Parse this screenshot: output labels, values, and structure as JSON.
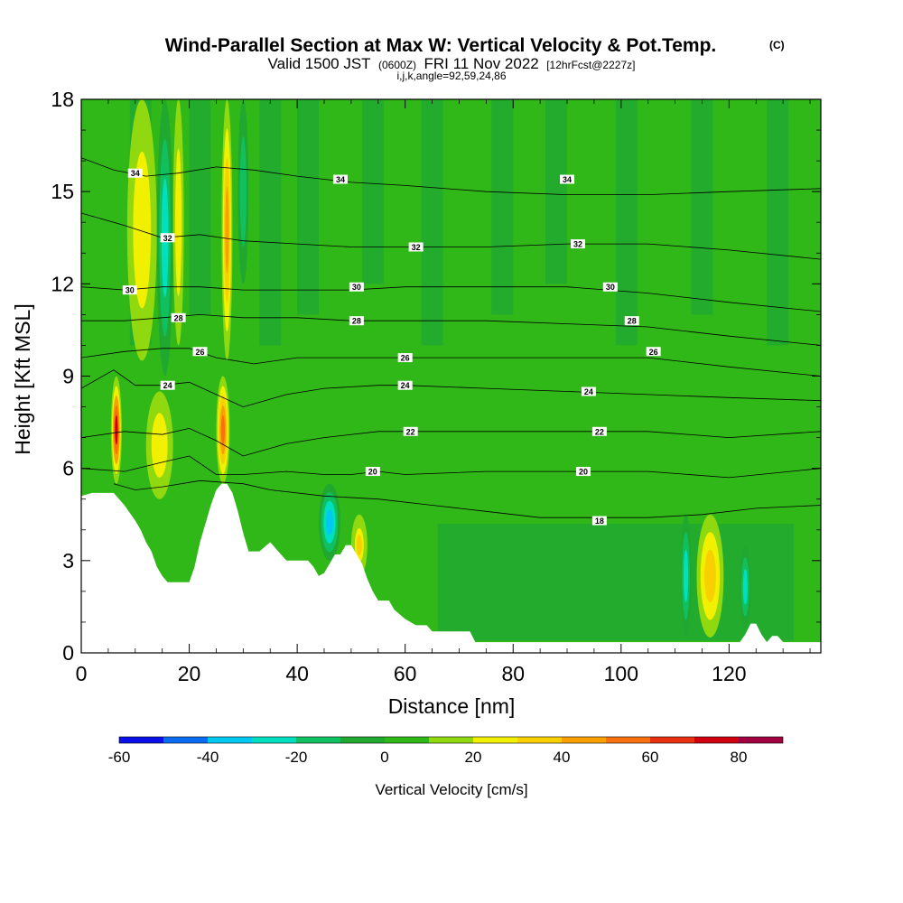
{
  "header": {
    "title": "Wind-Parallel Section at Max W: Vertical Velocity & Pot.Temp.",
    "copyright": "(C)",
    "valid_prefix": "Valid 1500 JST",
    "valid_utc": "(0600Z)",
    "valid_date": "FRI 11 Nov 2022",
    "forecast": "[12hrFcst@2227z]",
    "grid_info": "i,j,k,angle=92,59,24,86"
  },
  "chart_data": {
    "type": "heatmap",
    "title": "Wind-Parallel Section at Max W: Vertical Velocity & Pot.Temp.",
    "xlabel": "Distance [nm]",
    "ylabel": "Height [Kft MSL]",
    "xlim": [
      0,
      137
    ],
    "ylim": [
      0,
      18
    ],
    "xticks": [
      0,
      20,
      40,
      60,
      80,
      100,
      120
    ],
    "yticks": [
      0,
      3,
      6,
      9,
      12,
      15,
      18
    ],
    "grid": false,
    "fill_variable": "Vertical Velocity [cm/s]",
    "contour_variable": "Potential Temperature",
    "colorbar": {
      "title": "Vertical Velocity [cm/s]",
      "tick_labels": [
        "-60",
        "-40",
        "-20",
        "0",
        "20",
        "40",
        "60",
        "80"
      ],
      "tick_values": [
        -60,
        -40,
        -20,
        0,
        20,
        40,
        60,
        80
      ],
      "levels": [
        -60,
        -50,
        -40,
        -30,
        -20,
        -10,
        0,
        10,
        20,
        30,
        40,
        50,
        60,
        70,
        80,
        90
      ],
      "colors": [
        "#0a10e8",
        "#0a6cf0",
        "#00c8f0",
        "#00e0c0",
        "#10c060",
        "#20a830",
        "#30b818",
        "#90d810",
        "#f0f000",
        "#f8d000",
        "#f8a000",
        "#f87010",
        "#e83010",
        "#d00010",
        "#a00040",
        "#600080"
      ]
    },
    "terrain_kft": [
      [
        0,
        5.1
      ],
      [
        2,
        5.2
      ],
      [
        4,
        5.2
      ],
      [
        6,
        5.2
      ],
      [
        8,
        4.8
      ],
      [
        10,
        4.3
      ],
      [
        11,
        4.0
      ],
      [
        12,
        3.6
      ],
      [
        13,
        3.3
      ],
      [
        14,
        2.8
      ],
      [
        15,
        2.5
      ],
      [
        16,
        2.3
      ],
      [
        18,
        2.3
      ],
      [
        20,
        2.3
      ],
      [
        21,
        2.8
      ],
      [
        22,
        3.6
      ],
      [
        23,
        4.2
      ],
      [
        24,
        4.8
      ],
      [
        25,
        5.3
      ],
      [
        26,
        5.5
      ],
      [
        27,
        5.5
      ],
      [
        28,
        5.2
      ],
      [
        29,
        4.6
      ],
      [
        30,
        3.9
      ],
      [
        31,
        3.3
      ],
      [
        33,
        3.3
      ],
      [
        35,
        3.6
      ],
      [
        36,
        3.4
      ],
      [
        38,
        3.0
      ],
      [
        40,
        3.0
      ],
      [
        42,
        3.0
      ],
      [
        43,
        2.8
      ],
      [
        44,
        2.5
      ],
      [
        45,
        2.6
      ],
      [
        46,
        2.9
      ],
      [
        47,
        3.2
      ],
      [
        48,
        3.2
      ],
      [
        49,
        3.5
      ],
      [
        50,
        3.5
      ],
      [
        51,
        3.2
      ],
      [
        52,
        2.9
      ],
      [
        53,
        2.4
      ],
      [
        54,
        2.0
      ],
      [
        55,
        1.7
      ],
      [
        57,
        1.7
      ],
      [
        58,
        1.4
      ],
      [
        60,
        1.1
      ],
      [
        62,
        0.9
      ],
      [
        64,
        0.9
      ],
      [
        65,
        0.7
      ],
      [
        72,
        0.7
      ],
      [
        73,
        0.35
      ],
      [
        110,
        0.35
      ],
      [
        122,
        0.35
      ],
      [
        123,
        0.6
      ],
      [
        124,
        0.95
      ],
      [
        125,
        0.95
      ],
      [
        126,
        0.6
      ],
      [
        127,
        0.35
      ],
      [
        128,
        0.55
      ],
      [
        129,
        0.55
      ],
      [
        130,
        0.35
      ],
      [
        137,
        0.35
      ]
    ],
    "vertical_velocity_bands": [
      {
        "x": [
          5.5,
          7.5
        ],
        "z": [
          5.5,
          9
        ],
        "w": 70
      },
      {
        "x": [
          8.5,
          14
        ],
        "z": [
          9.5,
          18
        ],
        "w": 20
      },
      {
        "x": [
          14,
          17
        ],
        "z": [
          9,
          18
        ],
        "w": -25
      },
      {
        "x": [
          17,
          19
        ],
        "z": [
          10,
          18
        ],
        "w": 20
      },
      {
        "x": [
          12,
          17
        ],
        "z": [
          5,
          8.5
        ],
        "w": 20
      },
      {
        "x": [
          25,
          27.5
        ],
        "z": [
          5.5,
          9
        ],
        "w": 55
      },
      {
        "x": [
          26,
          28
        ],
        "z": [
          9.5,
          18
        ],
        "w": 40
      },
      {
        "x": [
          29,
          31
        ],
        "z": [
          12,
          18
        ],
        "w": -20
      },
      {
        "x": [
          44,
          48
        ],
        "z": [
          3,
          5.5
        ],
        "w": -35
      },
      {
        "x": [
          50,
          53
        ],
        "z": [
          2.5,
          4.5
        ],
        "w": 35
      },
      {
        "x": [
          111,
          113
        ],
        "z": [
          0.5,
          4.5
        ],
        "w": -25
      },
      {
        "x": [
          114,
          119
        ],
        "z": [
          0.5,
          4.5
        ],
        "w": 30
      },
      {
        "x": [
          122,
          124
        ],
        "z": [
          0.8,
          3.5
        ],
        "w": -30
      }
    ],
    "contours": [
      {
        "label": "34",
        "points": [
          [
            0,
            16.1
          ],
          [
            6,
            15.7
          ],
          [
            12,
            15.5
          ],
          [
            18,
            15.6
          ],
          [
            25,
            15.8
          ],
          [
            32,
            15.7
          ],
          [
            40,
            15.5
          ],
          [
            50,
            15.3
          ],
          [
            60,
            15.2
          ],
          [
            75,
            15.0
          ],
          [
            90,
            14.9
          ],
          [
            105,
            14.9
          ],
          [
            120,
            15.0
          ],
          [
            137,
            15.1
          ]
        ],
        "label_at": [
          [
            10,
            15.6
          ],
          [
            48,
            15.4
          ],
          [
            90,
            15.4
          ]
        ]
      },
      {
        "label": "32",
        "points": [
          [
            0,
            14.3
          ],
          [
            8,
            13.9
          ],
          [
            15,
            13.5
          ],
          [
            22,
            13.6
          ],
          [
            30,
            13.4
          ],
          [
            40,
            13.3
          ],
          [
            50,
            13.2
          ],
          [
            60,
            13.2
          ],
          [
            75,
            13.2
          ],
          [
            90,
            13.3
          ],
          [
            105,
            13.3
          ],
          [
            120,
            13.1
          ],
          [
            137,
            12.8
          ]
        ],
        "label_at": [
          [
            16,
            13.5
          ],
          [
            62,
            13.2
          ],
          [
            92,
            13.3
          ]
        ]
      },
      {
        "label": "30",
        "points": [
          [
            0,
            11.9
          ],
          [
            8,
            11.8
          ],
          [
            15,
            11.9
          ],
          [
            22,
            11.9
          ],
          [
            30,
            11.8
          ],
          [
            40,
            11.8
          ],
          [
            50,
            11.8
          ],
          [
            60,
            11.9
          ],
          [
            75,
            11.9
          ],
          [
            90,
            11.9
          ],
          [
            105,
            11.7
          ],
          [
            120,
            11.4
          ],
          [
            137,
            11.1
          ]
        ],
        "label_at": [
          [
            9,
            11.8
          ],
          [
            51,
            11.9
          ],
          [
            98,
            11.9
          ]
        ]
      },
      {
        "label": "28",
        "points": [
          [
            0,
            10.8
          ],
          [
            8,
            10.8
          ],
          [
            15,
            10.9
          ],
          [
            22,
            11.0
          ],
          [
            30,
            10.9
          ],
          [
            40,
            10.9
          ],
          [
            50,
            10.8
          ],
          [
            60,
            10.8
          ],
          [
            75,
            10.8
          ],
          [
            90,
            10.7
          ],
          [
            105,
            10.6
          ],
          [
            120,
            10.3
          ],
          [
            137,
            10.0
          ]
        ],
        "label_at": [
          [
            18,
            10.9
          ],
          [
            51,
            10.8
          ],
          [
            102,
            10.8
          ]
        ]
      },
      {
        "label": "26",
        "points": [
          [
            0,
            9.6
          ],
          [
            8,
            9.8
          ],
          [
            15,
            9.9
          ],
          [
            20,
            9.9
          ],
          [
            25,
            9.6
          ],
          [
            32,
            9.4
          ],
          [
            40,
            9.6
          ],
          [
            50,
            9.6
          ],
          [
            60,
            9.6
          ],
          [
            75,
            9.6
          ],
          [
            90,
            9.6
          ],
          [
            105,
            9.6
          ],
          [
            120,
            9.3
          ],
          [
            137,
            9.0
          ]
        ],
        "label_at": [
          [
            22,
            9.8
          ],
          [
            60,
            9.6
          ],
          [
            106,
            9.8
          ]
        ]
      },
      {
        "label": "24",
        "points": [
          [
            0,
            8.6
          ],
          [
            6,
            9.2
          ],
          [
            10,
            8.7
          ],
          [
            15,
            8.7
          ],
          [
            20,
            8.8
          ],
          [
            25,
            8.4
          ],
          [
            30,
            8.0
          ],
          [
            38,
            8.4
          ],
          [
            45,
            8.6
          ],
          [
            55,
            8.7
          ],
          [
            60,
            8.7
          ],
          [
            75,
            8.6
          ],
          [
            90,
            8.5
          ],
          [
            105,
            8.4
          ],
          [
            120,
            8.3
          ],
          [
            137,
            8.2
          ]
        ],
        "label_at": [
          [
            16,
            8.7
          ],
          [
            60,
            8.7
          ],
          [
            94,
            8.5
          ]
        ]
      },
      {
        "label": "22",
        "points": [
          [
            0,
            7.0
          ],
          [
            8,
            7.2
          ],
          [
            15,
            7.1
          ],
          [
            20,
            7.3
          ],
          [
            25,
            6.9
          ],
          [
            30,
            6.4
          ],
          [
            38,
            6.8
          ],
          [
            45,
            7.0
          ],
          [
            55,
            7.2
          ],
          [
            60,
            7.2
          ],
          [
            75,
            7.2
          ],
          [
            90,
            7.2
          ],
          [
            105,
            7.2
          ],
          [
            120,
            7.0
          ],
          [
            137,
            7.2
          ]
        ],
        "label_at": [
          [
            61,
            7.2
          ],
          [
            96,
            7.2
          ]
        ]
      },
      {
        "label": "20",
        "points": [
          [
            0,
            6.0
          ],
          [
            8,
            5.9
          ],
          [
            15,
            6.2
          ],
          [
            20,
            6.4
          ],
          [
            25,
            5.8
          ],
          [
            30,
            5.8
          ],
          [
            38,
            5.9
          ],
          [
            45,
            5.8
          ],
          [
            50,
            5.8
          ],
          [
            55,
            5.9
          ],
          [
            60,
            5.8
          ],
          [
            75,
            5.9
          ],
          [
            90,
            5.9
          ],
          [
            105,
            5.9
          ],
          [
            120,
            5.7
          ],
          [
            137,
            6.0
          ]
        ],
        "label_at": [
          [
            54,
            5.9
          ],
          [
            93,
            5.9
          ]
        ]
      },
      {
        "label": "18",
        "points": [
          [
            6,
            5.5
          ],
          [
            10,
            5.3
          ],
          [
            15,
            5.4
          ],
          [
            22,
            5.6
          ],
          [
            30,
            5.5
          ],
          [
            35,
            5.3
          ],
          [
            45,
            5.1
          ],
          [
            55,
            5.0
          ],
          [
            65,
            4.8
          ],
          [
            75,
            4.6
          ],
          [
            85,
            4.4
          ],
          [
            95,
            4.4
          ],
          [
            105,
            4.4
          ],
          [
            115,
            4.5
          ],
          [
            125,
            4.7
          ],
          [
            137,
            4.8
          ]
        ],
        "label_at": [
          [
            96,
            4.3
          ]
        ]
      }
    ]
  }
}
